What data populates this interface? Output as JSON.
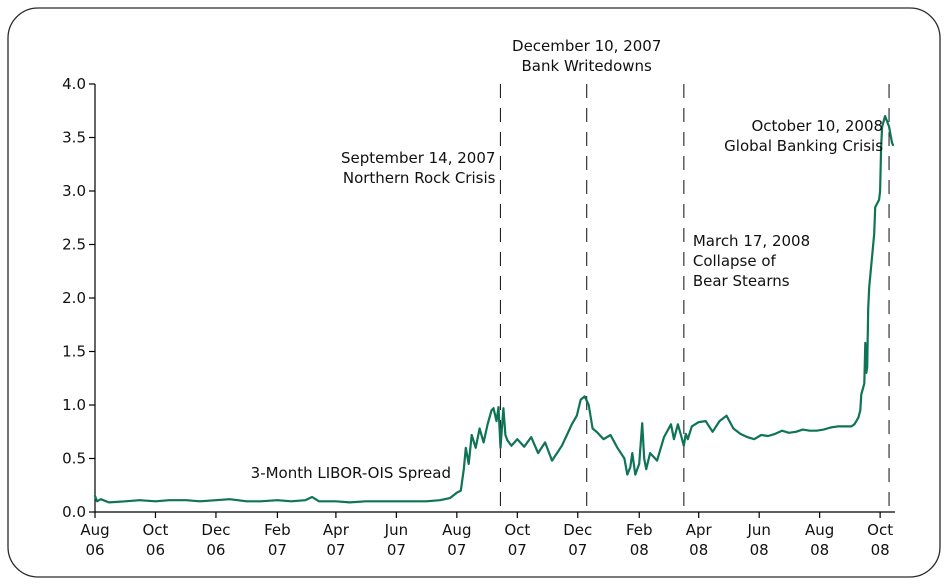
{
  "chart_data": {
    "type": "line",
    "title": "",
    "xlabel": "",
    "ylabel": "",
    "ylim": [
      0.0,
      4.0
    ],
    "y_ticks": [
      "0.0",
      "0.5",
      "1.0",
      "1.5",
      "2.0",
      "2.5",
      "3.0",
      "3.5",
      "4.0"
    ],
    "x_ticks": [
      {
        "month": "Aug",
        "year": "06",
        "date": "2006-08-01"
      },
      {
        "month": "Oct",
        "year": "06",
        "date": "2006-10-01"
      },
      {
        "month": "Dec",
        "year": "06",
        "date": "2006-12-01"
      },
      {
        "month": "Feb",
        "year": "07",
        "date": "2007-02-01"
      },
      {
        "month": "Apr",
        "year": "07",
        "date": "2007-04-01"
      },
      {
        "month": "Jun",
        "year": "07",
        "date": "2007-06-01"
      },
      {
        "month": "Aug",
        "year": "07",
        "date": "2007-08-01"
      },
      {
        "month": "Oct",
        "year": "07",
        "date": "2007-10-01"
      },
      {
        "month": "Dec",
        "year": "07",
        "date": "2007-12-01"
      },
      {
        "month": "Feb",
        "year": "08",
        "date": "2008-02-01"
      },
      {
        "month": "Apr",
        "year": "08",
        "date": "2008-04-01"
      },
      {
        "month": "Jun",
        "year": "08",
        "date": "2008-06-01"
      },
      {
        "month": "Aug",
        "year": "08",
        "date": "2008-08-01"
      },
      {
        "month": "Oct",
        "year": "08",
        "date": "2008-10-01"
      }
    ],
    "series_label": "3-Month LIBOR-OIS Spread",
    "series_color": "#0f7355",
    "grid": false,
    "annotations": [
      {
        "date": "2007-09-14",
        "lines": [
          "September 14, 2007",
          "Northern Rock Crisis"
        ],
        "align": "right"
      },
      {
        "date": "2007-12-10",
        "lines": [
          "December 10, 2007",
          "Bank Writedowns"
        ],
        "align": "center"
      },
      {
        "date": "2008-03-17",
        "lines": [
          "March 17, 2008",
          "Collapse of",
          "Bear Stearns"
        ],
        "align": "left"
      },
      {
        "date": "2008-10-10",
        "lines": [
          "October 10, 2008",
          "Global Banking Crisis"
        ],
        "align": "right"
      }
    ],
    "series": [
      {
        "name": "3-Month LIBOR-OIS Spread",
        "x": [
          "2006-08-01",
          "2006-08-03",
          "2006-08-07",
          "2006-08-15",
          "2006-09-01",
          "2006-09-15",
          "2006-10-01",
          "2006-10-15",
          "2006-11-01",
          "2006-11-15",
          "2006-12-01",
          "2006-12-15",
          "2007-01-01",
          "2007-01-15",
          "2007-02-01",
          "2007-02-15",
          "2007-03-01",
          "2007-03-08",
          "2007-03-15",
          "2007-04-01",
          "2007-04-15",
          "2007-05-01",
          "2007-05-15",
          "2007-06-01",
          "2007-06-15",
          "2007-07-01",
          "2007-07-15",
          "2007-07-25",
          "2007-08-01",
          "2007-08-05",
          "2007-08-08",
          "2007-08-10",
          "2007-08-13",
          "2007-08-16",
          "2007-08-20",
          "2007-08-24",
          "2007-08-28",
          "2007-09-01",
          "2007-09-05",
          "2007-09-07",
          "2007-09-10",
          "2007-09-12",
          "2007-09-14",
          "2007-09-17",
          "2007-09-19",
          "2007-09-21",
          "2007-09-25",
          "2007-10-01",
          "2007-10-08",
          "2007-10-15",
          "2007-10-22",
          "2007-10-29",
          "2007-11-05",
          "2007-11-10",
          "2007-11-15",
          "2007-11-20",
          "2007-11-25",
          "2007-11-30",
          "2007-12-04",
          "2007-12-08",
          "2007-12-12",
          "2007-12-16",
          "2007-12-20",
          "2007-12-27",
          "2008-01-03",
          "2008-01-10",
          "2008-01-17",
          "2008-01-20",
          "2008-01-23",
          "2008-01-25",
          "2008-01-28",
          "2008-02-01",
          "2008-02-04",
          "2008-02-06",
          "2008-02-08",
          "2008-02-12",
          "2008-02-19",
          "2008-02-26",
          "2008-03-04",
          "2008-03-07",
          "2008-03-11",
          "2008-03-14",
          "2008-03-17",
          "2008-03-19",
          "2008-03-21",
          "2008-03-25",
          "2008-04-01",
          "2008-04-08",
          "2008-04-15",
          "2008-04-22",
          "2008-04-29",
          "2008-05-06",
          "2008-05-13",
          "2008-05-20",
          "2008-05-27",
          "2008-06-03",
          "2008-06-10",
          "2008-06-17",
          "2008-06-24",
          "2008-07-01",
          "2008-07-08",
          "2008-07-15",
          "2008-07-22",
          "2008-07-29",
          "2008-08-05",
          "2008-08-12",
          "2008-08-19",
          "2008-08-26",
          "2008-09-02",
          "2008-09-05",
          "2008-09-09",
          "2008-09-11",
          "2008-09-12",
          "2008-09-15",
          "2008-09-16",
          "2008-09-17",
          "2008-09-18",
          "2008-09-19",
          "2008-09-20",
          "2008-09-22",
          "2008-09-23",
          "2008-09-25",
          "2008-09-26",
          "2008-09-29",
          "2008-09-30",
          "2008-10-01",
          "2008-10-02",
          "2008-10-03",
          "2008-10-06",
          "2008-10-08",
          "2008-10-10",
          "2008-10-13",
          "2008-10-14"
        ],
        "values": [
          0.15,
          0.1,
          0.12,
          0.09,
          0.1,
          0.11,
          0.1,
          0.11,
          0.11,
          0.1,
          0.11,
          0.12,
          0.1,
          0.1,
          0.11,
          0.1,
          0.11,
          0.14,
          0.1,
          0.1,
          0.09,
          0.1,
          0.1,
          0.1,
          0.1,
          0.1,
          0.11,
          0.13,
          0.18,
          0.2,
          0.4,
          0.6,
          0.45,
          0.72,
          0.6,
          0.78,
          0.65,
          0.82,
          0.95,
          0.97,
          0.85,
          0.98,
          0.6,
          0.97,
          0.72,
          0.67,
          0.62,
          0.68,
          0.61,
          0.7,
          0.55,
          0.65,
          0.48,
          0.55,
          0.62,
          0.72,
          0.82,
          0.9,
          1.05,
          1.08,
          1.0,
          0.78,
          0.75,
          0.68,
          0.72,
          0.6,
          0.5,
          0.35,
          0.42,
          0.55,
          0.35,
          0.45,
          0.83,
          0.5,
          0.4,
          0.55,
          0.48,
          0.7,
          0.82,
          0.68,
          0.82,
          0.72,
          0.62,
          0.73,
          0.68,
          0.8,
          0.84,
          0.85,
          0.75,
          0.85,
          0.9,
          0.78,
          0.73,
          0.7,
          0.68,
          0.72,
          0.71,
          0.73,
          0.76,
          0.74,
          0.75,
          0.77,
          0.76,
          0.76,
          0.77,
          0.79,
          0.8,
          0.8,
          0.8,
          0.82,
          0.88,
          0.95,
          1.1,
          1.2,
          1.58,
          1.3,
          1.35,
          1.9,
          2.1,
          2.3,
          2.4,
          2.6,
          2.85,
          2.9,
          2.92,
          3.0,
          3.4,
          3.6,
          3.7,
          3.65,
          3.6,
          3.45,
          3.43
        ]
      }
    ]
  }
}
